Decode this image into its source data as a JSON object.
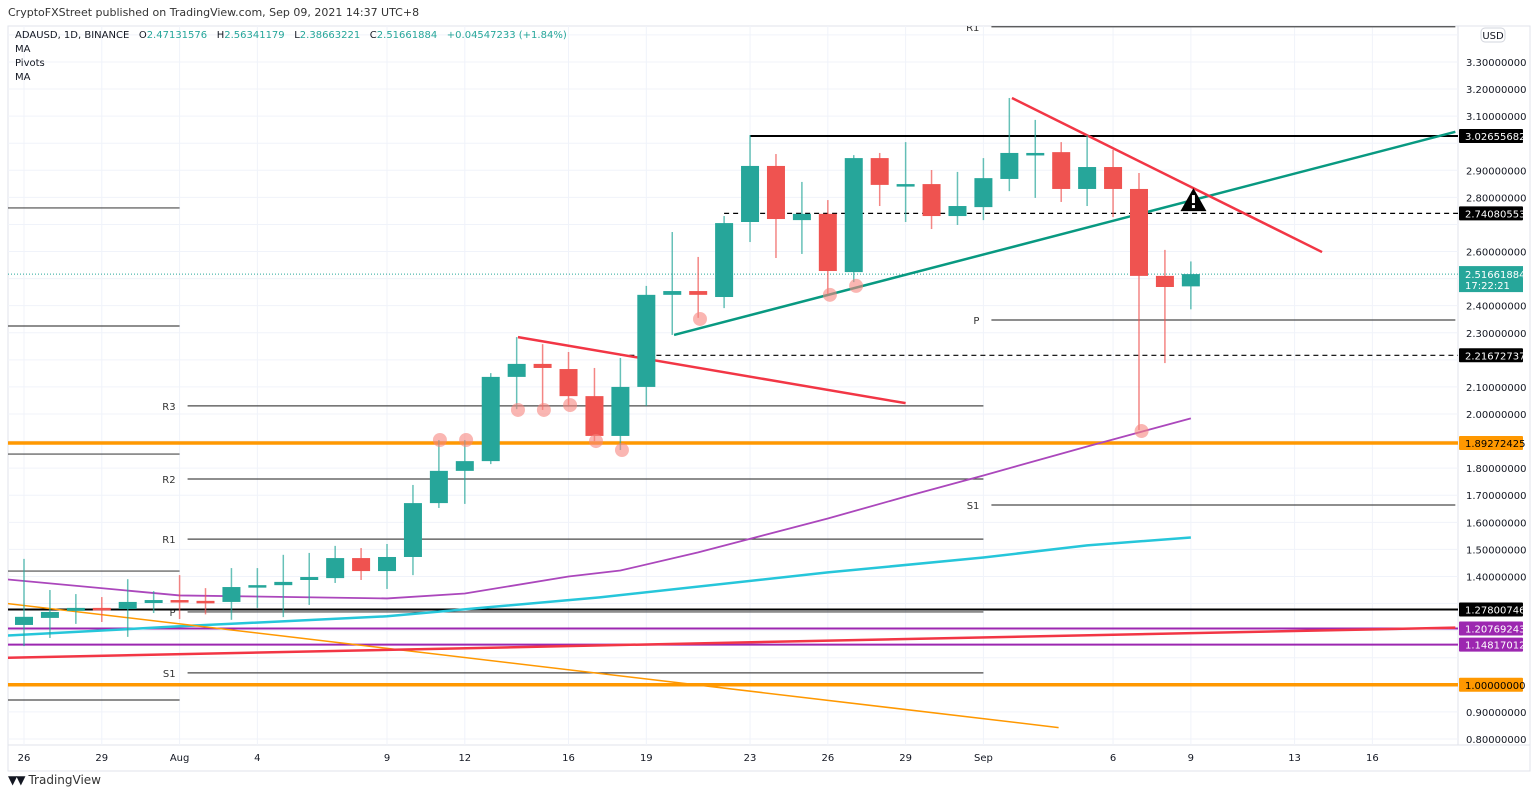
{
  "header": {
    "publisher": "CryptoFXStreet published on TradingView.com, Sep 09, 2021 14:37 UTC+8"
  },
  "legend": {
    "symbol": "ADAUSD, 1D, BINANCE",
    "o_label": "O",
    "o_value": "2.47131576",
    "h_label": "H",
    "h_value": "2.56341179",
    "l_label": "L",
    "l_value": "2.38663221",
    "c_label": "C",
    "c_value": "2.51661884",
    "change": "+0.04547233 (+1.84%)",
    "indicators": [
      "MA",
      "Pivots",
      "MA"
    ]
  },
  "footer": {
    "brand": "TradingView",
    "logo": "TV"
  },
  "chart_data": {
    "type": "candlestick",
    "title": "ADAUSD, 1D, BINANCE",
    "currency": "USD",
    "ylim": [
      0.8,
      3.4
    ],
    "ytick_step": 0.1,
    "grid": true,
    "first_day": "Jul 26",
    "x_ticks": [
      {
        "day": 0,
        "label": "26"
      },
      {
        "day": 3,
        "label": "29"
      },
      {
        "day": 6,
        "label": "Aug"
      },
      {
        "day": 9,
        "label": "4"
      },
      {
        "day": 14,
        "label": "9"
      },
      {
        "day": 17,
        "label": "12"
      },
      {
        "day": 21,
        "label": "16"
      },
      {
        "day": 24,
        "label": "19"
      },
      {
        "day": 28,
        "label": "23"
      },
      {
        "day": 31,
        "label": "26"
      },
      {
        "day": 34,
        "label": "29"
      },
      {
        "day": 37,
        "label": "Sep"
      },
      {
        "day": 42,
        "label": "6"
      },
      {
        "day": 45,
        "label": "9"
      },
      {
        "day": 49,
        "label": "13"
      },
      {
        "day": 52,
        "label": "16"
      }
    ],
    "candles": [
      [
        1.221,
        1.465,
        1.143,
        1.251
      ],
      [
        1.247,
        1.35,
        1.173,
        1.269
      ],
      [
        1.273,
        1.335,
        1.225,
        1.284
      ],
      [
        1.284,
        1.324,
        1.232,
        1.277
      ],
      [
        1.28,
        1.39,
        1.177,
        1.306
      ],
      [
        1.302,
        1.346,
        1.265,
        1.313
      ],
      [
        1.313,
        1.405,
        1.243,
        1.306
      ],
      [
        1.31,
        1.357,
        1.26,
        1.302
      ],
      [
        1.306,
        1.431,
        1.24,
        1.361
      ],
      [
        1.361,
        1.431,
        1.284,
        1.368
      ],
      [
        1.368,
        1.48,
        1.25,
        1.38
      ],
      [
        1.387,
        1.487,
        1.295,
        1.398
      ],
      [
        1.394,
        1.513,
        1.376,
        1.468
      ],
      [
        1.468,
        1.505,
        1.387,
        1.42
      ],
      [
        1.42,
        1.52,
        1.354,
        1.472
      ],
      [
        1.472,
        1.738,
        1.405,
        1.671
      ],
      [
        1.671,
        1.904,
        1.653,
        1.79
      ],
      [
        1.79,
        1.904,
        1.668,
        1.826
      ],
      [
        1.826,
        2.151,
        1.815,
        2.137
      ],
      [
        2.137,
        2.284,
        2.018,
        2.185
      ],
      [
        2.185,
        2.258,
        2.015,
        2.17
      ],
      [
        2.166,
        2.229,
        2.033,
        2.066
      ],
      [
        2.066,
        2.17,
        1.9,
        1.919
      ],
      [
        1.919,
        2.207,
        1.867,
        2.1
      ],
      [
        2.1,
        2.473,
        2.03,
        2.44
      ],
      [
        2.44,
        2.672,
        2.292,
        2.454
      ],
      [
        2.454,
        2.58,
        2.355,
        2.44
      ],
      [
        2.432,
        2.731,
        2.391,
        2.705
      ],
      [
        2.709,
        3.03,
        2.635,
        2.916
      ],
      [
        2.916,
        2.96,
        2.576,
        2.72
      ],
      [
        2.716,
        2.857,
        2.591,
        2.739
      ],
      [
        2.739,
        2.79,
        2.443,
        2.528
      ],
      [
        2.524,
        2.956,
        2.487,
        2.945
      ],
      [
        2.945,
        2.964,
        2.768,
        2.846
      ],
      [
        2.846,
        3.004,
        2.709,
        2.849
      ],
      [
        2.849,
        2.901,
        2.683,
        2.731
      ],
      [
        2.731,
        2.894,
        2.698,
        2.768
      ],
      [
        2.764,
        2.945,
        2.716,
        2.871
      ],
      [
        2.868,
        3.167,
        2.823,
        2.964
      ],
      [
        2.96,
        3.086,
        2.798,
        2.964
      ],
      [
        2.967,
        3.004,
        2.783,
        2.831
      ],
      [
        2.831,
        3.03,
        2.768,
        2.912
      ],
      [
        2.912,
        2.975,
        2.727,
        2.831
      ],
      [
        2.831,
        2.89,
        1.941,
        2.51
      ],
      [
        2.51,
        2.606,
        2.188,
        2.469
      ],
      [
        2.47131576,
        2.56341179,
        2.38663221,
        2.51661884
      ]
    ],
    "last_price": {
      "value": "2.51661884",
      "countdown": "17:22:21",
      "price": 2.51661884
    },
    "levels": [
      {
        "price": 3.02655682,
        "label": "3.02655682",
        "color": "#000000",
        "style": "solid",
        "from_day": 28
      },
      {
        "price": 2.74080553,
        "label": "2.74080553",
        "color": "#000000",
        "style": "dashed",
        "from_day": 27
      },
      {
        "price": 2.21672737,
        "label": "2.21672737",
        "color": "#000000",
        "style": "dashed",
        "from_day": 23
      },
      {
        "price": 1.89272425,
        "label": "1.89272425",
        "color": "#ff9800",
        "style": "thick",
        "from_day": -1
      },
      {
        "price": 1.27800746,
        "label": "1.27800746",
        "color": "#000000",
        "style": "solid",
        "from_day": -1
      },
      {
        "price": 1.20769243,
        "label": "1.20769243",
        "color": "#9c27b0",
        "style": "solid",
        "from_day": -1
      },
      {
        "price": 1.14817012,
        "label": "1.14817012",
        "color": "#9c27b0",
        "style": "solid",
        "from_day": -1
      },
      {
        "price": 1.0,
        "label": "1.00000000",
        "color": "#ff9800",
        "style": "thick",
        "from_day": -1
      }
    ],
    "pivots": [
      {
        "from_day": -0.62,
        "to_day": 6,
        "lines": [
          {
            "name": "",
            "price": 2.761
          },
          {
            "name": "",
            "price": 2.325
          },
          {
            "name": "",
            "price": 1.852
          },
          {
            "name": "",
            "price": 1.42
          },
          {
            "name": "",
            "price": 0.944
          }
        ]
      },
      {
        "from_day": 6,
        "to_day": 37,
        "lines": [
          {
            "name": "R3",
            "price": 2.03
          },
          {
            "name": "R2",
            "price": 1.76
          },
          {
            "name": "R1",
            "price": 1.538
          },
          {
            "name": "P",
            "price": 1.269
          },
          {
            "name": "S1",
            "price": 1.044
          }
        ]
      },
      {
        "from_day": 37,
        "to_day": 55.2,
        "lines": [
          {
            "name": "R1",
            "price": 3.43
          },
          {
            "name": "P",
            "price": 2.347
          },
          {
            "name": "S1",
            "price": 1.664
          }
        ]
      }
    ],
    "trendlines": [
      {
        "name": "ascending-support",
        "color": "#089981",
        "width": 2.5,
        "points": [
          [
            25.07,
            2.292
          ],
          [
            55.2,
            3.042
          ]
        ]
      },
      {
        "name": "september-resistance",
        "color": "#f23645",
        "width": 2.5,
        "points": [
          [
            38.1,
            3.167
          ],
          [
            50.06,
            2.598
          ]
        ]
      },
      {
        "name": "august-resistance",
        "color": "#f23645",
        "width": 2.5,
        "points": [
          [
            19.05,
            2.284
          ],
          [
            34.0,
            2.04
          ]
        ]
      },
      {
        "name": "long-descending",
        "color": "#ff9800",
        "width": 1.5,
        "points": [
          [
            -0.62,
            1.3
          ],
          [
            39.9,
            0.842
          ]
        ]
      },
      {
        "name": "long-ascending",
        "color": "#f23645",
        "width": 2.5,
        "points": [
          [
            -0.62,
            1.1
          ],
          [
            55.2,
            1.211
          ]
        ]
      }
    ],
    "moving_averages": [
      {
        "name": "MA",
        "color": "#ab47bc",
        "points": [
          [
            -0.62,
            1.389
          ],
          [
            6,
            1.33
          ],
          [
            14,
            1.319
          ],
          [
            17,
            1.337
          ],
          [
            21,
            1.4
          ],
          [
            23,
            1.422
          ],
          [
            26,
            1.489
          ],
          [
            31,
            1.614
          ],
          [
            34,
            1.695
          ],
          [
            37,
            1.773
          ],
          [
            41,
            1.88
          ],
          [
            45,
            1.984
          ]
        ]
      },
      {
        "name": "MA",
        "color": "#26c6da",
        "points": [
          [
            -0.62,
            1.182
          ],
          [
            6,
            1.216
          ],
          [
            14,
            1.253
          ],
          [
            22.2,
            1.323
          ],
          [
            31,
            1.415
          ],
          [
            37,
            1.47
          ],
          [
            41,
            1.515
          ],
          [
            45,
            1.544
          ]
        ]
      }
    ],
    "low_markers": [
      [
        16.04,
        1.904
      ],
      [
        17.05,
        1.904
      ],
      [
        19.05,
        2.015
      ],
      [
        20.05,
        2.015
      ],
      [
        21.06,
        2.033
      ],
      [
        22.06,
        1.9
      ],
      [
        23.06,
        1.867
      ],
      [
        26.07,
        2.351
      ],
      [
        31.08,
        2.44
      ],
      [
        32.09,
        2.473
      ],
      [
        43.1,
        1.937
      ]
    ],
    "warning_marker": {
      "day": 45.1,
      "price": 2.79
    }
  }
}
